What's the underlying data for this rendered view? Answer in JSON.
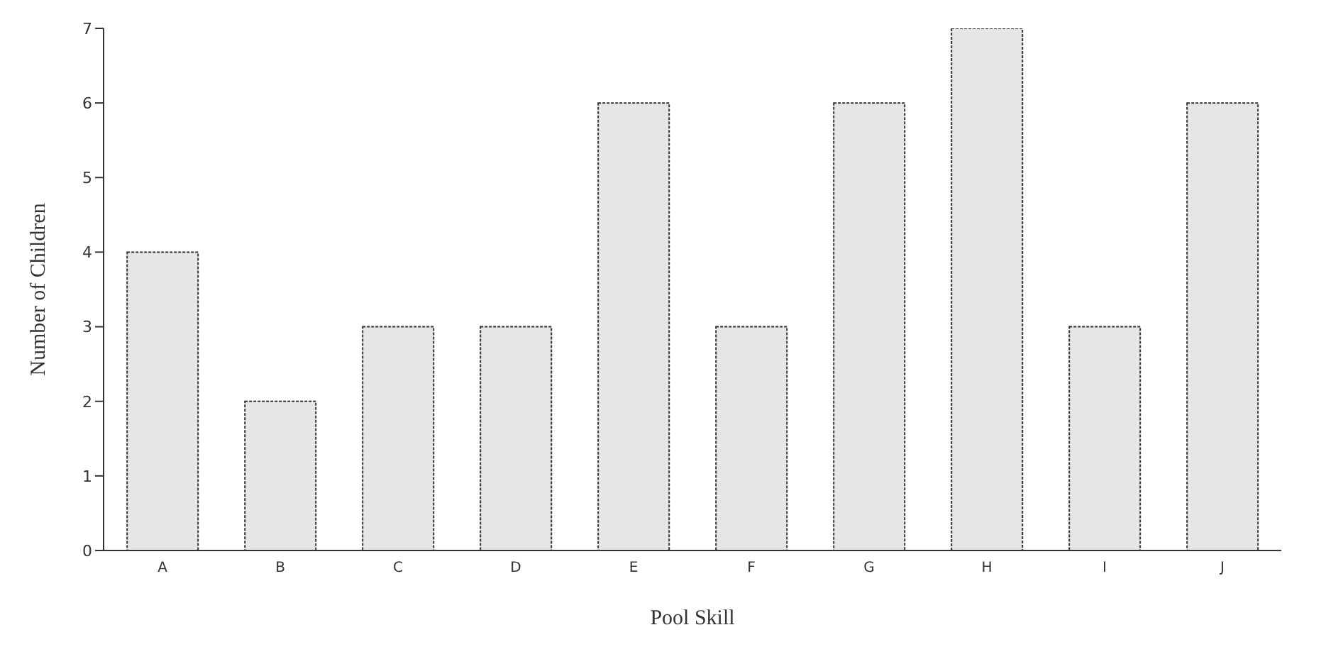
{
  "chart_data": {
    "type": "bar",
    "xlabel": "Pool Skill",
    "ylabel": "Number of Children",
    "categories": [
      "A",
      "B",
      "C",
      "D",
      "E",
      "F",
      "G",
      "H",
      "I",
      "J"
    ],
    "values": [
      4,
      2,
      3,
      3,
      6,
      3,
      6,
      7,
      3,
      6
    ],
    "color": "#e6e6e6",
    "ylim": [
      0,
      7
    ],
    "yticks": [
      0,
      1,
      2,
      3,
      4,
      5,
      6,
      7
    ],
    "grid": false
  }
}
